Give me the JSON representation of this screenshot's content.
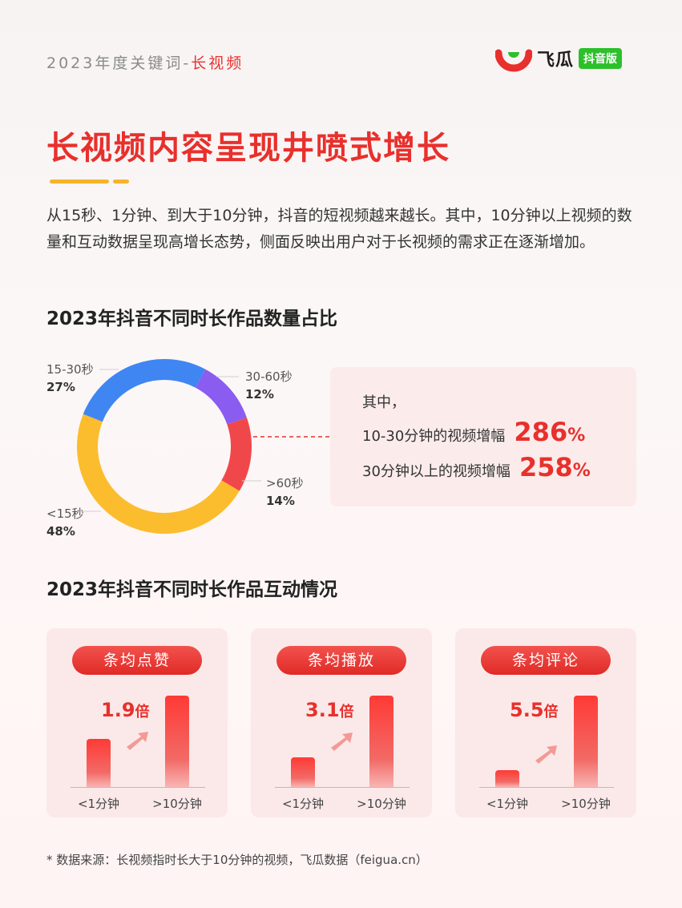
{
  "header": {
    "keyword_prefix": "2023年度关键词",
    "keyword_sep": "-",
    "keyword_highlight": "长视频",
    "logo_text": "飞瓜",
    "logo_badge": "抖音版"
  },
  "title": "长视频内容呈现井喷式增长",
  "description": "从15秒、1分钟、到大于10分钟，抖音的短视频越来越长。其中，10分钟以上视频的数量和互动数据呈现高增长态势，侧面反映出用户对于长视频的需求正在逐渐增加。",
  "section1_title": "2023年抖音不同时长作品数量占比",
  "section2_title": "2023年抖音不同时长作品互动情况",
  "callout": {
    "intro": "其中，",
    "line1_label": "10-30分钟的视频增幅",
    "line1_value": "286",
    "line1_unit": "%",
    "line2_label": "30分钟以上的视频增幅",
    "line2_value": "258",
    "line2_unit": "%"
  },
  "chart_data": [
    {
      "type": "pie",
      "title": "2023年抖音不同时长作品数量占比",
      "categories": [
        "30-60秒",
        ">60秒",
        "<15秒",
        "15-30秒"
      ],
      "values": [
        12,
        14,
        48,
        27
      ],
      "labels": [
        "12%",
        "14%",
        "48%",
        "27%"
      ],
      "colors": [
        "#8a5cf0",
        "#f0484a",
        "#fbbd2d",
        "#3f86f2"
      ]
    },
    {
      "type": "bar",
      "title": "条均点赞",
      "categories": [
        "<1分钟",
        ">10分钟"
      ],
      "values": [
        1,
        1.9
      ],
      "annotation_value": "1.9",
      "annotation_unit": "倍"
    },
    {
      "type": "bar",
      "title": "条均播放",
      "categories": [
        "<1分钟",
        ">10分钟"
      ],
      "values": [
        1,
        3.1
      ],
      "annotation_value": "3.1",
      "annotation_unit": "倍"
    },
    {
      "type": "bar",
      "title": "条均评论",
      "categories": [
        "<1分钟",
        ">10分钟"
      ],
      "values": [
        1,
        5.5
      ],
      "annotation_value": "5.5",
      "annotation_unit": "倍"
    }
  ],
  "footnote": "* 数据来源：长视频指时长大于10分钟的视频，飞瓜数据（feigua.cn）",
  "colors": {
    "accent": "#e8302c",
    "deco": "#f5b42a",
    "logo_green": "#2cc02b"
  }
}
